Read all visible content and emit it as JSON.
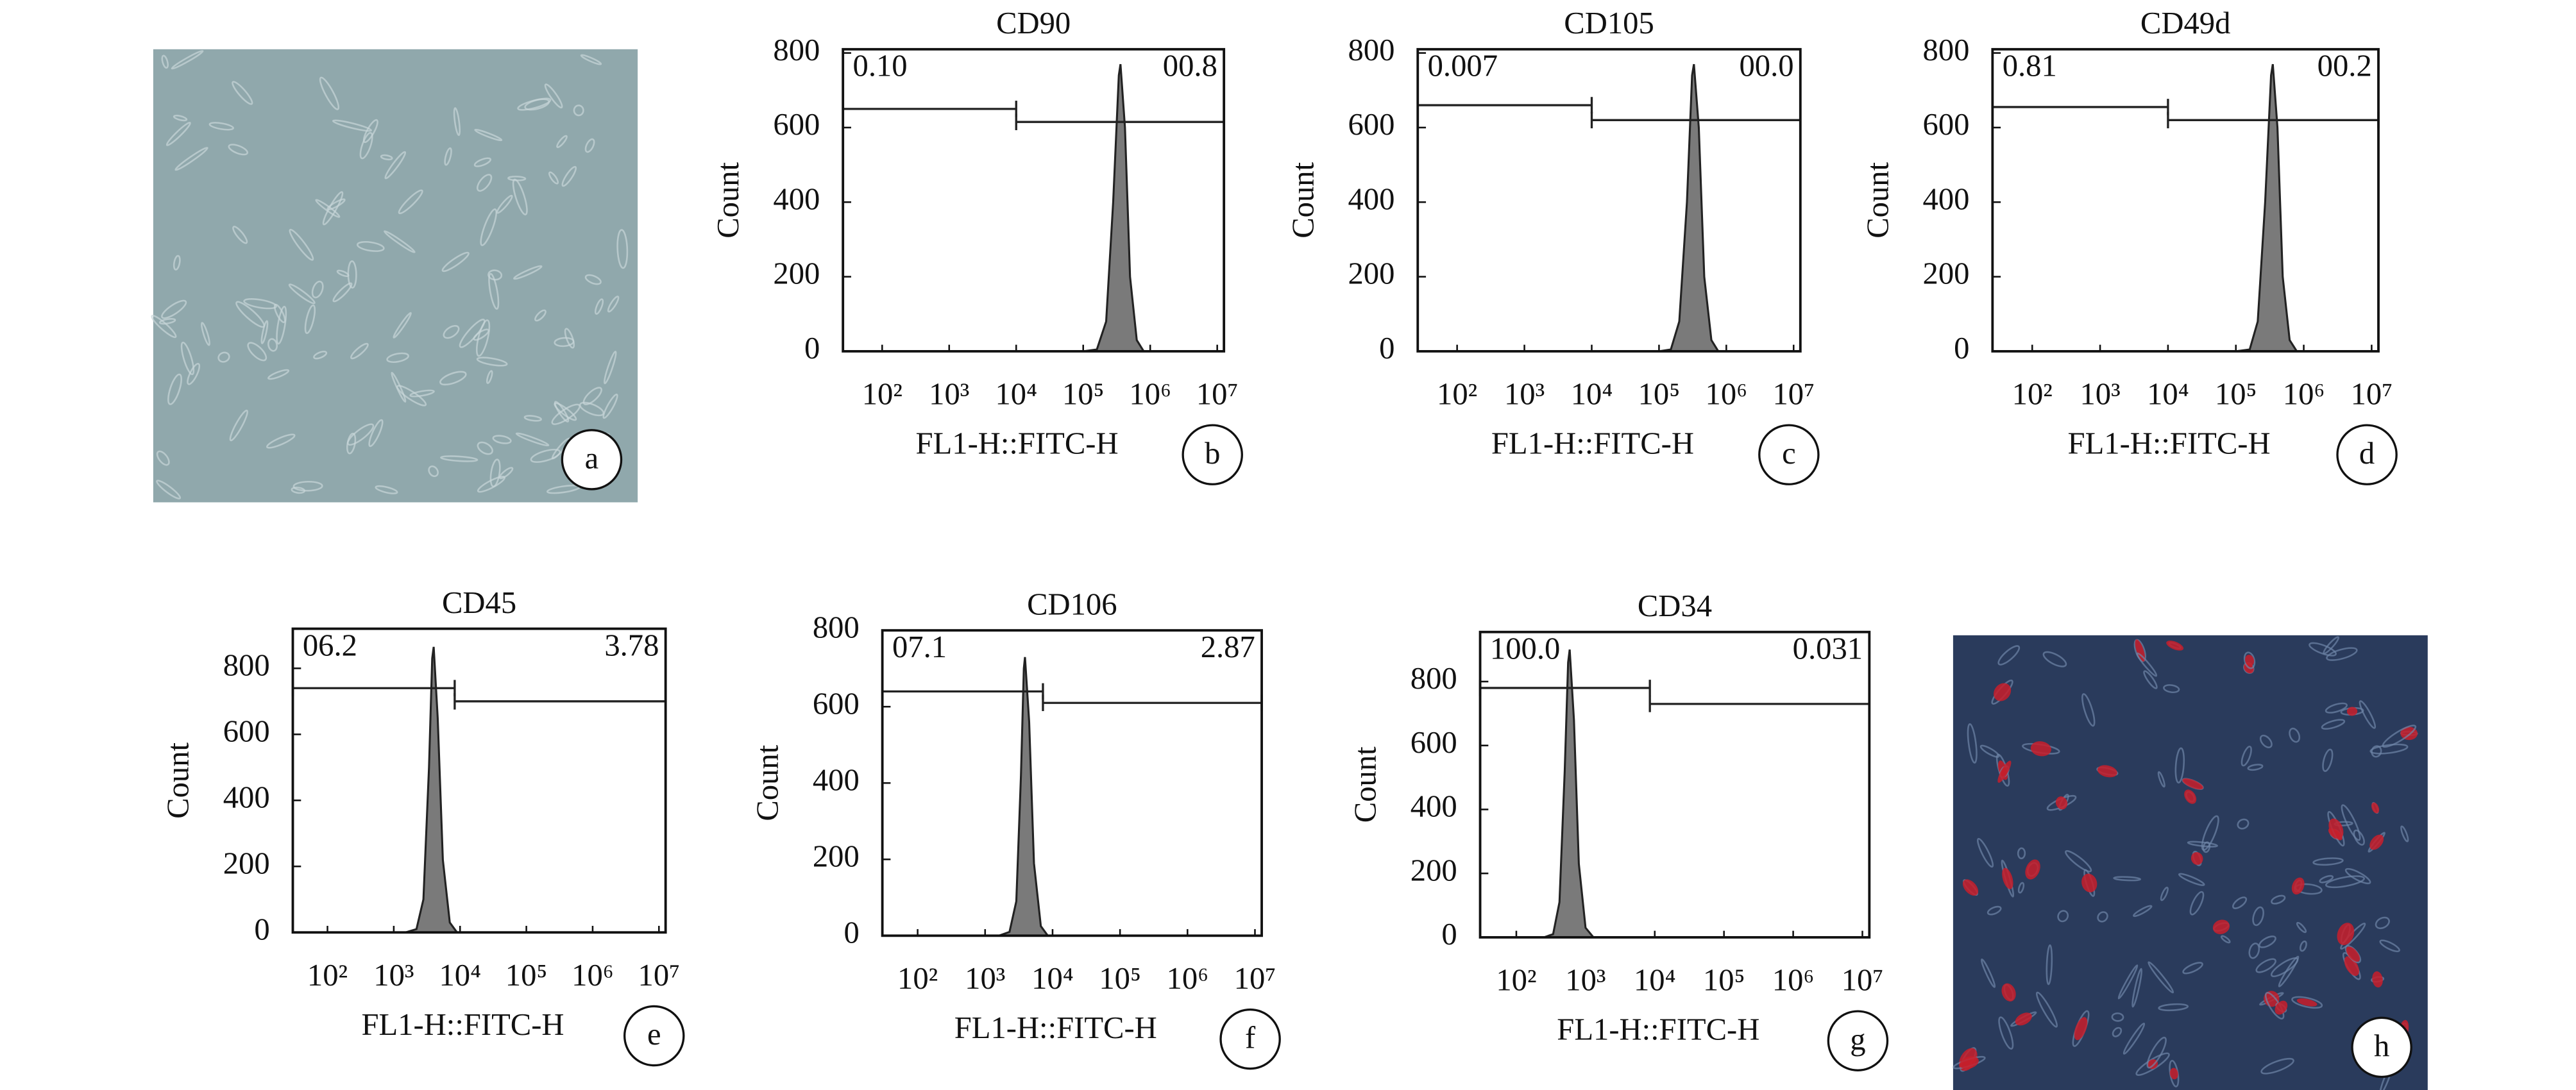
{
  "chart_data": [
    {
      "type": "area",
      "title": "CD90",
      "panel_label": "b",
      "x_label": "FL1-H::FITC-H",
      "y_label": "Count",
      "xscale": "log",
      "xlim": [
        26,
        12600000
      ],
      "xticks": [
        {
          "value": 100,
          "label": "10²"
        },
        {
          "value": 1000,
          "label": "10³"
        },
        {
          "value": 10000,
          "label": "10⁴"
        },
        {
          "value": 100000,
          "label": "10⁵"
        },
        {
          "value": 1000000,
          "label": "10⁶"
        },
        {
          "value": 10000000,
          "label": "10⁷"
        }
      ],
      "ylim": [
        0,
        810
      ],
      "yticks": [
        0,
        200,
        400,
        600,
        800
      ],
      "color": "#7a7a7a",
      "x": [
        100000,
        160000,
        220000,
        280000,
        340000,
        360000,
        420000,
        500000,
        630000,
        800000
      ],
      "values": [
        0,
        5,
        80,
        400,
        740,
        770,
        600,
        200,
        30,
        0
      ],
      "gates": [
        {
          "label": "0.10",
          "range": [
            26,
            10000
          ],
          "y": 650
        },
        {
          "label": "00.8",
          "range": [
            10000,
            12600000
          ],
          "y": 615
        }
      ]
    },
    {
      "type": "area",
      "title": "CD105",
      "panel_label": "c",
      "x_label": "FL1-H::FITC-H",
      "y_label": "Count",
      "xscale": "log",
      "xlim": [
        26,
        12600000
      ],
      "xticks": [
        {
          "value": 100,
          "label": "10²"
        },
        {
          "value": 1000,
          "label": "10³"
        },
        {
          "value": 10000,
          "label": "10⁴"
        },
        {
          "value": 100000,
          "label": "10⁵"
        },
        {
          "value": 1000000,
          "label": "10⁶"
        },
        {
          "value": 10000000,
          "label": "10⁷"
        }
      ],
      "ylim": [
        0,
        810
      ],
      "yticks": [
        0,
        200,
        400,
        600,
        800
      ],
      "color": "#7a7a7a",
      "x": [
        100000,
        150000,
        200000,
        260000,
        310000,
        330000,
        390000,
        470000,
        600000,
        760000
      ],
      "values": [
        0,
        5,
        80,
        400,
        740,
        770,
        600,
        200,
        30,
        0
      ],
      "gates": [
        {
          "label": "0.007",
          "range": [
            26,
            10000
          ],
          "y": 660
        },
        {
          "label": "00.0",
          "range": [
            10000,
            12600000
          ],
          "y": 620
        }
      ]
    },
    {
      "type": "area",
      "title": "CD49d",
      "panel_label": "d",
      "x_label": "FL1-H::FITC-H",
      "y_label": "Count",
      "xscale": "log",
      "xlim": [
        26,
        12600000
      ],
      "xticks": [
        {
          "value": 100,
          "label": "10²"
        },
        {
          "value": 1000,
          "label": "10³"
        },
        {
          "value": 10000,
          "label": "10⁴"
        },
        {
          "value": 100000,
          "label": "10⁵"
        },
        {
          "value": 1000000,
          "label": "10⁶"
        },
        {
          "value": 10000000,
          "label": "10⁷"
        }
      ],
      "ylim": [
        0,
        810
      ],
      "yticks": [
        0,
        200,
        400,
        600,
        800
      ],
      "color": "#7a7a7a",
      "x": [
        100000,
        160000,
        210000,
        270000,
        330000,
        350000,
        410000,
        490000,
        620000,
        790000
      ],
      "values": [
        0,
        5,
        80,
        400,
        740,
        770,
        600,
        200,
        30,
        0
      ],
      "gates": [
        {
          "label": "0.81",
          "range": [
            26,
            10000
          ],
          "y": 655
        },
        {
          "label": "00.2",
          "range": [
            10000,
            12600000
          ],
          "y": 620
        }
      ]
    },
    {
      "type": "area",
      "title": "CD45",
      "panel_label": "e",
      "x_label": "FL1-H::FITC-H",
      "y_label": "Count",
      "xscale": "log",
      "xlim": [
        30,
        12600000
      ],
      "xticks": [
        {
          "value": 100,
          "label": "10²"
        },
        {
          "value": 1000,
          "label": "10³"
        },
        {
          "value": 10000,
          "label": "10⁴"
        },
        {
          "value": 100000,
          "label": "10⁵"
        },
        {
          "value": 1000000,
          "label": "10⁶"
        },
        {
          "value": 10000000,
          "label": "10⁷"
        }
      ],
      "ylim": [
        0,
        920
      ],
      "yticks": [
        0,
        200,
        400,
        600,
        800
      ],
      "color": "#7a7a7a",
      "x": [
        1500,
        2200,
        2800,
        3400,
        3800,
        4000,
        4600,
        5500,
        7000,
        9000
      ],
      "values": [
        0,
        10,
        100,
        500,
        830,
        865,
        650,
        220,
        30,
        0
      ],
      "gates": [
        {
          "label": "06.2",
          "range": [
            30,
            8300
          ],
          "y": 740
        },
        {
          "label": "3.78",
          "range": [
            8300,
            12600000
          ],
          "y": 700
        }
      ]
    },
    {
      "type": "area",
      "title": "CD106",
      "panel_label": "f",
      "x_label": "FL1-H::FITC-H",
      "y_label": "Count",
      "xscale": "log",
      "xlim": [
        30,
        12600000
      ],
      "xticks": [
        {
          "value": 100,
          "label": "10²"
        },
        {
          "value": 1000,
          "label": "10³"
        },
        {
          "value": 10000,
          "label": "10⁴"
        },
        {
          "value": 100000,
          "label": "10⁵"
        },
        {
          "value": 1000000,
          "label": "10⁶"
        },
        {
          "value": 10000000,
          "label": "10⁷"
        }
      ],
      "ylim": [
        0,
        800
      ],
      "yticks": [
        0,
        200,
        400,
        600,
        800
      ],
      "color": "#7a7a7a",
      "x": [
        1600,
        2300,
        2900,
        3400,
        3750,
        3900,
        4500,
        5300,
        6700,
        8500
      ],
      "values": [
        0,
        10,
        90,
        420,
        700,
        730,
        560,
        190,
        25,
        0
      ],
      "gates": [
        {
          "label": "07.1",
          "range": [
            30,
            7200
          ],
          "y": 640
        },
        {
          "label": "2.87",
          "range": [
            7200,
            12600000
          ],
          "y": 610
        }
      ]
    },
    {
      "type": "area",
      "title": "CD34",
      "panel_label": "g",
      "x_label": "FL1-H::FITC-H",
      "y_label": "Count",
      "xscale": "log",
      "xlim": [
        30,
        12600000
      ],
      "xticks": [
        {
          "value": 100,
          "label": "10²"
        },
        {
          "value": 1000,
          "label": "10³"
        },
        {
          "value": 10000,
          "label": "10⁴"
        },
        {
          "value": 100000,
          "label": "10⁵"
        },
        {
          "value": 1000000,
          "label": "10⁶"
        },
        {
          "value": 10000000,
          "label": "10⁷"
        }
      ],
      "ylim": [
        0,
        955
      ],
      "yticks": [
        0,
        200,
        400,
        600,
        800
      ],
      "color": "#7a7a7a",
      "x": [
        250,
        340,
        420,
        500,
        560,
        590,
        680,
        800,
        1000,
        1300
      ],
      "values": [
        0,
        10,
        110,
        520,
        860,
        900,
        680,
        230,
        30,
        0
      ],
      "gates": [
        {
          "label": "100.0",
          "range": [
            30,
            8500
          ],
          "y": 780
        },
        {
          "label": "0.031",
          "range": [
            8500,
            12600000
          ],
          "y": 730
        }
      ]
    }
  ],
  "images": [
    {
      "panel_label": "a"
    },
    {
      "panel_label": "h"
    }
  ]
}
